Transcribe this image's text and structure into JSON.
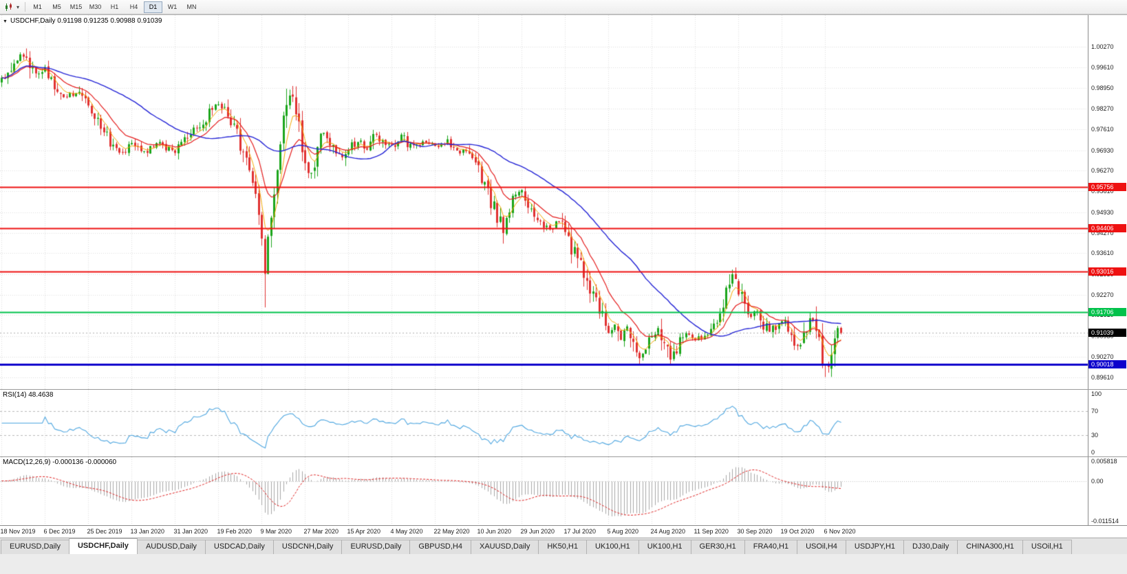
{
  "toolbar": {
    "timeframes": [
      "M1",
      "M5",
      "M15",
      "M30",
      "H1",
      "H4",
      "D1",
      "W1",
      "MN"
    ],
    "active_timeframe": "D1"
  },
  "chart": {
    "collapse_arrow": "▼",
    "title": "USDCHF,Daily",
    "ohlc_text": "0.91198 0.91235 0.90988 0.91039",
    "current_price_label": "0.91039",
    "price_axis_labels": [
      "1.00270",
      "0.99610",
      "0.98950",
      "0.98270",
      "0.97610",
      "0.96930",
      "0.96270",
      "0.95610",
      "0.94930",
      "0.94270",
      "0.93610",
      "0.92930",
      "0.92270",
      "0.91610",
      "0.90930",
      "0.90270",
      "0.89610"
    ],
    "date_axis_labels": [
      "18 Nov 2019",
      "6 Dec 2019",
      "25 Dec 2019",
      "13 Jan 2020",
      "31 Jan 2020",
      "19 Feb 2020",
      "9 Mar 2020",
      "27 Mar 2020",
      "15 Apr 2020",
      "4 May 2020",
      "22 May 2020",
      "10 Jun 2020",
      "29 Jun 2020",
      "17 Jul 2020",
      "5 Aug 2020",
      "24 Aug 2020",
      "11 Sep 2020",
      "30 Sep 2020",
      "19 Oct 2020",
      "6 Nov 2020"
    ],
    "colors": {
      "background": "#ffffff",
      "grid": "#dcdcdc",
      "up_candle": "#1aa51a",
      "down_candle": "#e03030",
      "ma_fast": "#f5a800",
      "ma_mid": "#e51b1b",
      "ma_slow": "#2323d6",
      "current_price_bg": "#000000",
      "current_price_line": "#b0b0b0"
    }
  },
  "indicators": {
    "rsi": {
      "title": "RSI(14) 48.4638",
      "levels": [
        "100",
        "70",
        "30",
        "0"
      ],
      "line_color": "#4da6e0"
    },
    "macd": {
      "title": "MACD(12,26,9) -0.000136 -0.000060",
      "scale_labels": [
        "0.005818",
        "0.00",
        "-0.011514"
      ],
      "histogram_color": "#a6a6a6",
      "signal_color": "#e02020"
    }
  },
  "chart_data": {
    "type": "candlestick",
    "symbol": "USDCHF",
    "timeframe": "Daily",
    "bars": 272,
    "bar_spacing_px": 4.5,
    "ticks_every_bars": 14,
    "price_grid_top": 1.0027,
    "price_grid_bottom": 0.8961,
    "last_candle": {
      "open": 0.91198,
      "high": 0.91235,
      "low": 0.90988,
      "close": 0.91039
    },
    "price_anchors": [
      [
        0,
        0.9915
      ],
      [
        4,
        0.9985
      ],
      [
        8,
        1.0005
      ],
      [
        11,
        0.993
      ],
      [
        14,
        0.9962
      ],
      [
        17,
        0.9895
      ],
      [
        20,
        0.9858
      ],
      [
        24,
        0.988
      ],
      [
        28,
        0.9838
      ],
      [
        32,
        0.9778
      ],
      [
        36,
        0.9708
      ],
      [
        40,
        0.9682
      ],
      [
        42,
        0.9718
      ],
      [
        46,
        0.9688
      ],
      [
        50,
        0.9716
      ],
      [
        56,
        0.9688
      ],
      [
        60,
        0.9735
      ],
      [
        64,
        0.9775
      ],
      [
        68,
        0.9825
      ],
      [
        70,
        0.9845
      ],
      [
        73,
        0.98
      ],
      [
        76,
        0.9745
      ],
      [
        79,
        0.966
      ],
      [
        82,
        0.956
      ],
      [
        84,
        0.942
      ],
      [
        85,
        0.931
      ],
      [
        86,
        0.939
      ],
      [
        88,
        0.952
      ],
      [
        90,
        0.97
      ],
      [
        92,
        0.986
      ],
      [
        94,
        0.9885
      ],
      [
        96,
        0.976
      ],
      [
        98,
        0.9655
      ],
      [
        100,
        0.9615
      ],
      [
        102,
        0.97
      ],
      [
        104,
        0.9758
      ],
      [
        107,
        0.9692
      ],
      [
        110,
        0.9662
      ],
      [
        112,
        0.9695
      ],
      [
        115,
        0.9725
      ],
      [
        118,
        0.97
      ],
      [
        121,
        0.9742
      ],
      [
        124,
        0.9712
      ],
      [
        126,
        0.9708
      ],
      [
        129,
        0.9742
      ],
      [
        132,
        0.9705
      ],
      [
        136,
        0.972
      ],
      [
        140,
        0.9703
      ],
      [
        144,
        0.9722
      ],
      [
        147,
        0.9685
      ],
      [
        150,
        0.97
      ],
      [
        154,
        0.964
      ],
      [
        157,
        0.956
      ],
      [
        160,
        0.948
      ],
      [
        162,
        0.9432
      ],
      [
        165,
        0.9528
      ],
      [
        168,
        0.9558
      ],
      [
        171,
        0.95
      ],
      [
        174,
        0.9462
      ],
      [
        177,
        0.944
      ],
      [
        180,
        0.9465
      ],
      [
        182,
        0.942
      ],
      [
        185,
        0.936
      ],
      [
        188,
        0.9292
      ],
      [
        191,
        0.9222
      ],
      [
        194,
        0.9152
      ],
      [
        196,
        0.91
      ],
      [
        198,
        0.9135
      ],
      [
        200,
        0.9082
      ],
      [
        202,
        0.9118
      ],
      [
        204,
        0.9056
      ],
      [
        206,
        0.9022
      ],
      [
        210,
        0.9088
      ],
      [
        212,
        0.9128
      ],
      [
        214,
        0.9072
      ],
      [
        216,
        0.9018
      ],
      [
        218,
        0.9052
      ],
      [
        220,
        0.9102
      ],
      [
        224,
        0.9082
      ],
      [
        227,
        0.9095
      ],
      [
        230,
        0.9125
      ],
      [
        233,
        0.918
      ],
      [
        235,
        0.9268
      ],
      [
        237,
        0.9295
      ],
      [
        238,
        0.9252
      ],
      [
        240,
        0.9182
      ],
      [
        242,
        0.9152
      ],
      [
        244,
        0.9175
      ],
      [
        246,
        0.9132
      ],
      [
        248,
        0.9105
      ],
      [
        252,
        0.9148
      ],
      [
        254,
        0.9122
      ],
      [
        256,
        0.9082
      ],
      [
        258,
        0.9052
      ],
      [
        260,
        0.9118
      ],
      [
        262,
        0.9158
      ],
      [
        264,
        0.9062
      ],
      [
        266,
        0.8992
      ],
      [
        268,
        0.904
      ],
      [
        270,
        0.9108
      ],
      [
        271,
        0.9104
      ]
    ],
    "wick_highs": [
      [
        8,
        1.0022
      ],
      [
        92,
        0.9892
      ],
      [
        237,
        0.9302
      ]
    ],
    "wick_lows": [
      [
        85,
        0.9186
      ],
      [
        162,
        0.9392
      ],
      [
        206,
        0.8999
      ],
      [
        216,
        0.9
      ],
      [
        266,
        0.8961
      ]
    ],
    "horizontal_lines": [
      {
        "price": 0.95756,
        "label": "0.95756",
        "color": "#ee1111",
        "width": 2
      },
      {
        "price": 0.94406,
        "label": "0.94406",
        "color": "#ee1111",
        "width": 2
      },
      {
        "price": 0.93016,
        "label": "0.93016",
        "color": "#ee1111",
        "width": 2
      },
      {
        "price": 0.91706,
        "label": "0.91706",
        "color": "#00c24b",
        "width": 2
      },
      {
        "price": 0.90018,
        "label": "0.90018",
        "color": "#0d00cc",
        "width": 3
      }
    ],
    "moving_averages": [
      {
        "period": 5,
        "type": "ema",
        "color": "#f5a800"
      },
      {
        "period": 13,
        "type": "ema",
        "color": "#e51b1b"
      },
      {
        "period": 40,
        "type": "sma",
        "color": "#2323d6"
      }
    ],
    "rsi": {
      "period": 14,
      "current": 48.4638,
      "levels": [
        70,
        30
      ],
      "range": [
        0,
        100
      ]
    },
    "macd": {
      "fast": 12,
      "slow": 26,
      "signal": 9,
      "current": -0.000136,
      "current_signal": -6e-05,
      "range": [
        -0.011514,
        0.005818
      ]
    }
  },
  "tabs": {
    "items": [
      {
        "label": "EURUSD,Daily",
        "active": false
      },
      {
        "label": "USDCHF,Daily",
        "active": true
      },
      {
        "label": "AUDUSD,Daily",
        "active": false
      },
      {
        "label": "USDCAD,Daily",
        "active": false
      },
      {
        "label": "USDCNH,Daily",
        "active": false
      },
      {
        "label": "EURUSD,Daily",
        "active": false
      },
      {
        "label": "GBPUSD,H4",
        "active": false
      },
      {
        "label": "XAUUSD,Daily",
        "active": false
      },
      {
        "label": "HK50,H1",
        "active": false
      },
      {
        "label": "UK100,H1",
        "active": false
      },
      {
        "label": "UK100,H1",
        "active": false
      },
      {
        "label": "GER30,H1",
        "active": false
      },
      {
        "label": "FRA40,H1",
        "active": false
      },
      {
        "label": "USOil,H4",
        "active": false
      },
      {
        "label": "USDJPY,H1",
        "active": false
      },
      {
        "label": "DJ30,Daily",
        "active": false
      },
      {
        "label": "CHINA300,H1",
        "active": false
      },
      {
        "label": "USOil,H1",
        "active": false
      }
    ]
  }
}
